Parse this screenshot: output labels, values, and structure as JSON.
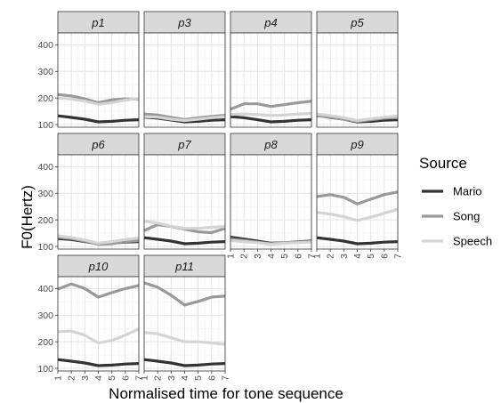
{
  "chart_data": {
    "type": "line",
    "x": [
      1,
      2,
      3,
      4,
      5,
      6,
      7
    ],
    "x_tick_labels": [
      "1",
      "2",
      "3",
      "4",
      "5",
      "6",
      "7"
    ],
    "y_tick_labels": [
      "100",
      "200",
      "300",
      "400"
    ],
    "xlim": [
      1,
      7
    ],
    "ylim": [
      90,
      445
    ],
    "xlabel": "Normalised time for tone sequence",
    "ylabel": "F0(Hertz)",
    "legend": {
      "title": "Source",
      "placement": "right",
      "entries": [
        {
          "name": "Mario",
          "color": "#333333"
        },
        {
          "name": "Song",
          "color": "#999999"
        },
        {
          "name": "Speech",
          "color": "#d4d4d4"
        }
      ]
    },
    "grid": true,
    "facets": [
      {
        "label": "p1",
        "series": [
          {
            "name": "Mario",
            "values": [
              133,
              127,
              120,
              110,
              112,
              116,
              118
            ]
          },
          {
            "name": "Song",
            "values": [
              213,
              208,
              197,
              182,
              193,
              197,
              195
            ]
          },
          {
            "name": "Speech",
            "values": [
              200,
              196,
              188,
              176,
              182,
              192,
              198
            ]
          }
        ]
      },
      {
        "label": "p3",
        "series": [
          {
            "name": "Mario",
            "values": [
              128,
              124,
              117,
              110,
              112,
              116,
              118
            ]
          },
          {
            "name": "Song",
            "values": [
              140,
              136,
              127,
              119,
              125,
              131,
              135
            ]
          },
          {
            "name": "Speech",
            "values": [
              130,
              128,
              120,
              115,
              120,
              126,
              130
            ]
          }
        ]
      },
      {
        "label": "p4",
        "series": [
          {
            "name": "Mario",
            "values": [
              130,
              126,
              118,
              110,
              112,
              116,
              118
            ]
          },
          {
            "name": "Song",
            "values": [
              158,
              178,
              178,
              168,
              175,
              182,
              188
            ]
          },
          {
            "name": "Speech",
            "values": [
              138,
              140,
              138,
              134,
              136,
              140,
              142
            ]
          }
        ]
      },
      {
        "label": "p5",
        "series": [
          {
            "name": "Mario",
            "values": [
              135,
              127,
              120,
              110,
              112,
              116,
              118
            ]
          },
          {
            "name": "Song",
            "values": [
              133,
              128,
              120,
              112,
              118,
              124,
              126
            ]
          },
          {
            "name": "Speech",
            "values": [
              140,
              134,
              126,
              115,
              122,
              128,
              132
            ]
          }
        ]
      },
      {
        "label": "p6",
        "series": [
          {
            "name": "Mario",
            "values": [
              130,
              126,
              118,
              110,
              112,
              116,
              118
            ]
          },
          {
            "name": "Song",
            "values": [
              135,
              130,
              120,
              108,
              110,
              118,
              122
            ]
          },
          {
            "name": "Speech",
            "values": [
              140,
              134,
              124,
              112,
              118,
              126,
              132
            ]
          }
        ]
      },
      {
        "label": "p7",
        "series": [
          {
            "name": "Mario",
            "values": [
              133,
              127,
              120,
              110,
              112,
              116,
              118
            ]
          },
          {
            "name": "Song",
            "values": [
              160,
              182,
              175,
              165,
              155,
              152,
              168
            ]
          },
          {
            "name": "Speech",
            "values": [
              195,
              188,
              176,
              168,
              168,
              172,
              175
            ]
          }
        ]
      },
      {
        "label": "p8",
        "series": [
          {
            "name": "Mario",
            "values": [
              135,
              128,
              120,
              112,
              114,
              117,
              120
            ]
          },
          {
            "name": "Song",
            "values": [
              128,
              122,
              116,
              110,
              114,
              116,
              118
            ]
          },
          {
            "name": "Speech",
            "values": [
              122,
              118,
              114,
              108,
              112,
              114,
              116
            ]
          }
        ]
      },
      {
        "label": "p9",
        "series": [
          {
            "name": "Mario",
            "values": [
              133,
              127,
              120,
              110,
              112,
              116,
              118
            ]
          },
          {
            "name": "Song",
            "values": [
              288,
              295,
              285,
              260,
              278,
              295,
              305
            ]
          },
          {
            "name": "Speech",
            "values": [
              228,
              222,
              212,
              198,
              210,
              225,
              240
            ]
          }
        ]
      },
      {
        "label": "p10",
        "series": [
          {
            "name": "Mario",
            "values": [
              133,
              127,
              120,
              110,
              112,
              116,
              118
            ]
          },
          {
            "name": "Song",
            "values": [
              398,
              418,
              400,
              368,
              385,
              400,
              412
            ]
          },
          {
            "name": "Speech",
            "values": [
              238,
              240,
              225,
              195,
              205,
              225,
              248
            ]
          }
        ]
      },
      {
        "label": "p11",
        "series": [
          {
            "name": "Mario",
            "values": [
              133,
              127,
              120,
              110,
              112,
              116,
              118
            ]
          },
          {
            "name": "Song",
            "values": [
              422,
              405,
              375,
              338,
              352,
              368,
              372
            ]
          },
          {
            "name": "Speech",
            "values": [
              235,
              230,
              215,
              200,
              200,
              196,
              190
            ]
          }
        ]
      }
    ]
  }
}
